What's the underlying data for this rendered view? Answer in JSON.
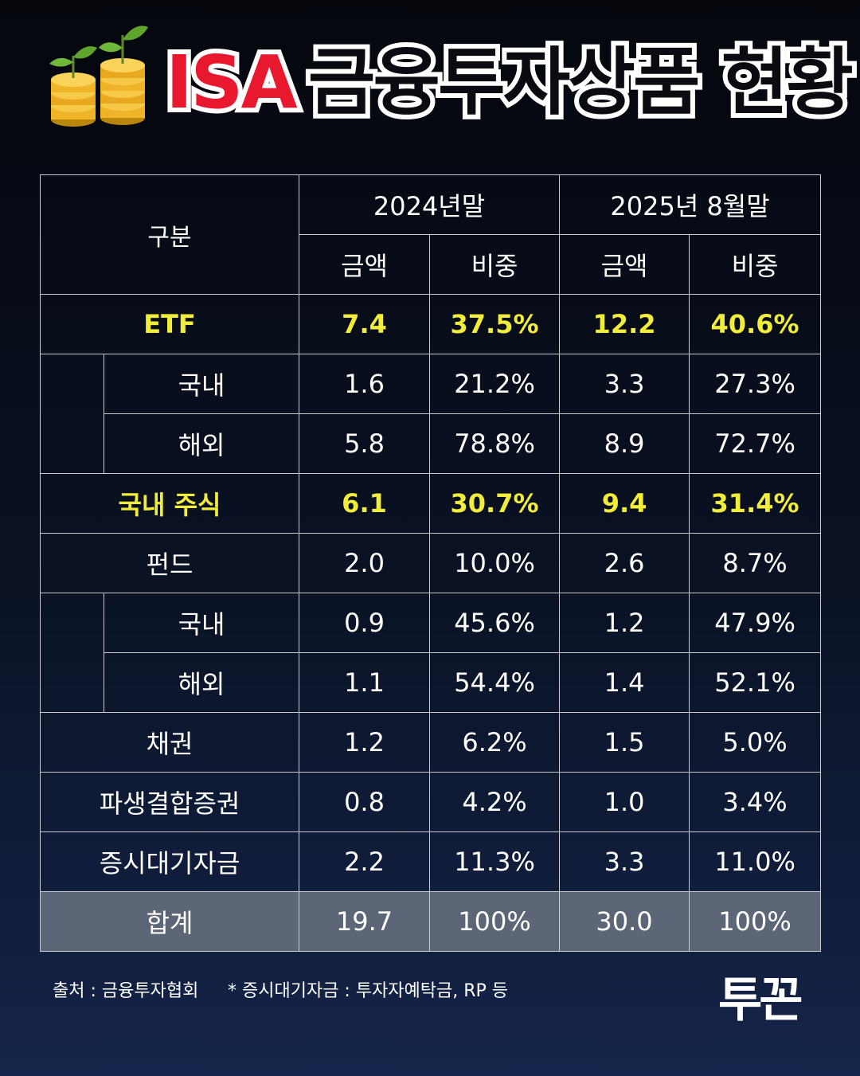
{
  "header": {
    "title_isa": "ISA",
    "title_rest": "금융투자상품 현황",
    "icon": "coin-stack-with-sprout-icon"
  },
  "table": {
    "label_header": "구분",
    "period_2024": "2024년말",
    "period_2025": "2025년 8월말",
    "col_amount": "금액",
    "col_ratio": "비중",
    "rows": [
      {
        "label": "ETF",
        "a24": "7.4",
        "r24": "37.5%",
        "a25": "12.2",
        "r25": "40.6%"
      },
      {
        "label": "국내",
        "a24": "1.6",
        "r24": "21.2%",
        "a25": "3.3",
        "r25": "27.3%"
      },
      {
        "label": "해외",
        "a24": "5.8",
        "r24": "78.8%",
        "a25": "8.9",
        "r25": "72.7%"
      },
      {
        "label": "국내 주식",
        "a24": "6.1",
        "r24": "30.7%",
        "a25": "9.4",
        "r25": "31.4%"
      },
      {
        "label": "펀드",
        "a24": "2.0",
        "r24": "10.0%",
        "a25": "2.6",
        "r25": "8.7%"
      },
      {
        "label": "국내",
        "a24": "0.9",
        "r24": "45.6%",
        "a25": "1.2",
        "r25": "47.9%"
      },
      {
        "label": "해외",
        "a24": "1.1",
        "r24": "54.4%",
        "a25": "1.4",
        "r25": "52.1%"
      },
      {
        "label": "채권",
        "a24": "1.2",
        "r24": "6.2%",
        "a25": "1.5",
        "r25": "5.0%"
      },
      {
        "label": "파생결합증권",
        "a24": "0.8",
        "r24": "4.2%",
        "a25": "1.0",
        "r25": "3.4%"
      },
      {
        "label": "증시대기자금",
        "a24": "2.2",
        "r24": "11.3%",
        "a25": "3.3",
        "r25": "11.0%"
      },
      {
        "label": "합계",
        "a24": "19.7",
        "r24": "100%",
        "a25": "30.0",
        "r25": "100%"
      }
    ]
  },
  "colors": {
    "highlight": "#f2ec3b",
    "title_red": "#e8182e",
    "total_row_bg": "#5d6677"
  },
  "footer": {
    "source": "출처 : 금융투자협회",
    "note": "* 증시대기자금 : 투자자예탁금, RP 등",
    "logo": "투꼰"
  }
}
